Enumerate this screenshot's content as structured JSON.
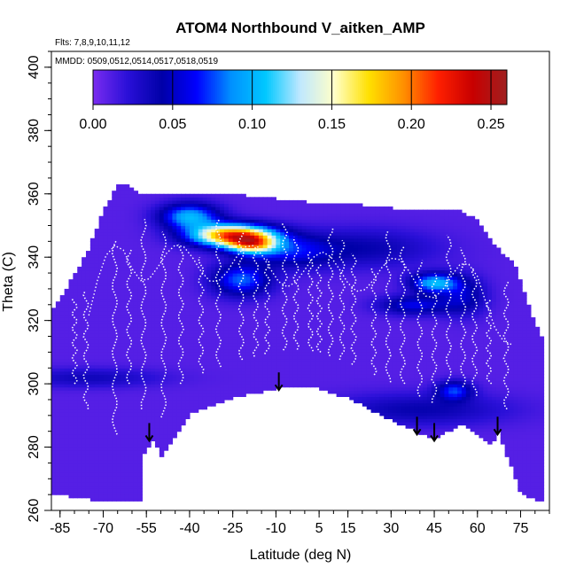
{
  "chart_data": {
    "type": "heatmap",
    "title": "ATOM4 Northbound V_aitken_AMP",
    "subtitle_flights": "Flts: 7,8,9,10,11,12",
    "subtitle_dates": "MMDD: 0509,0512,0514,0517,0518,0519",
    "xlabel": "Latitude (deg N)",
    "ylabel": "Theta (C)",
    "xlim": [
      -88,
      85
    ],
    "ylim": [
      260,
      405
    ],
    "xticks": [
      -85,
      -70,
      -55,
      -40,
      -25,
      -10,
      5,
      15,
      30,
      45,
      60,
      75
    ],
    "yticks": [
      260,
      280,
      300,
      320,
      340,
      360,
      380,
      400
    ],
    "colorbar": {
      "min": 0.0,
      "max": 0.26,
      "ticks": [
        0.0,
        0.05,
        0.1,
        0.15,
        0.2,
        0.25
      ],
      "tick_labels": [
        "0.00",
        "0.05",
        "0.10",
        "0.15",
        "0.20",
        "0.25"
      ],
      "colors": [
        "#7a2cf0",
        "#2a10d8",
        "#0000a8",
        "#0000ff",
        "#0090ff",
        "#00c8ff",
        "#bfe8ff",
        "#ffffc8",
        "#ffe000",
        "#ff9000",
        "#ff2000",
        "#c80000",
        "#a02020"
      ]
    },
    "field": {
      "background_value": 0.01,
      "upper_boundary": [
        [
          -88,
          323
        ],
        [
          -80,
          335
        ],
        [
          -75,
          343
        ],
        [
          -70,
          355
        ],
        [
          -65,
          363
        ],
        [
          -63,
          364
        ],
        [
          -56,
          360
        ],
        [
          -45,
          360
        ],
        [
          -20,
          360
        ],
        [
          0,
          358
        ],
        [
          20,
          357
        ],
        [
          40,
          355
        ],
        [
          55,
          355
        ],
        [
          60,
          352
        ],
        [
          65,
          345
        ],
        [
          73,
          338
        ],
        [
          80,
          320
        ],
        [
          85,
          310
        ]
      ],
      "lower_boundary": [
        [
          -88,
          265
        ],
        [
          -75,
          263
        ],
        [
          -63,
          263
        ],
        [
          -56,
          263
        ],
        [
          -56,
          277
        ],
        [
          -52,
          282
        ],
        [
          -50,
          276
        ],
        [
          -40,
          290
        ],
        [
          -25,
          295
        ],
        [
          -10,
          298
        ],
        [
          -5,
          299
        ],
        [
          5,
          298
        ],
        [
          15,
          295
        ],
        [
          30,
          288
        ],
        [
          45,
          282
        ],
        [
          55,
          287
        ],
        [
          65,
          280
        ],
        [
          67,
          285
        ],
        [
          75,
          265
        ],
        [
          80,
          263
        ],
        [
          85,
          262
        ]
      ],
      "features": [
        {
          "lat": -25,
          "theta": 347,
          "slat": 14,
          "stheta": 3.5,
          "value": 0.2
        },
        {
          "lat": -40,
          "theta": 353,
          "slat": 10,
          "stheta": 4,
          "value": 0.09
        },
        {
          "lat": -18,
          "theta": 344,
          "slat": 8,
          "stheta": 3,
          "value": 0.12
        },
        {
          "lat": -22,
          "theta": 333,
          "slat": 10,
          "stheta": 5,
          "value": 0.07
        },
        {
          "lat": -5,
          "theta": 342,
          "slat": 14,
          "stheta": 5,
          "value": 0.045
        },
        {
          "lat": 20,
          "theta": 343,
          "slat": 25,
          "stheta": 6,
          "value": 0.03
        },
        {
          "lat": 45,
          "theta": 332,
          "slat": 8,
          "stheta": 3,
          "value": 0.09
        },
        {
          "lat": 38,
          "theta": 325,
          "slat": 12,
          "stheta": 3,
          "value": 0.05
        },
        {
          "lat": 55,
          "theta": 328,
          "slat": 8,
          "stheta": 6,
          "value": 0.04
        },
        {
          "lat": 52,
          "theta": 298,
          "slat": 6,
          "stheta": 3,
          "value": 0.06
        },
        {
          "lat": -75,
          "theta": 302,
          "slat": 25,
          "stheta": 3,
          "value": 0.025
        },
        {
          "lat": 40,
          "theta": 292,
          "slat": 30,
          "stheta": 5,
          "value": 0.03
        }
      ]
    },
    "profiles": [
      -80,
      -76,
      -66,
      -61,
      -56,
      -49,
      -43,
      -36,
      -30,
      -22,
      -17,
      -13,
      -7,
      -3,
      2,
      5,
      9,
      13,
      17,
      24,
      29,
      34,
      40,
      45,
      50,
      55,
      59,
      64,
      70
    ],
    "profile_color": "#ffffff",
    "arrows": [
      {
        "lat": -54,
        "theta": 282
      },
      {
        "lat": -9,
        "theta": 298
      },
      {
        "lat": 39,
        "theta": 284
      },
      {
        "lat": 45,
        "theta": 282
      },
      {
        "lat": 67,
        "theta": 284
      }
    ]
  }
}
